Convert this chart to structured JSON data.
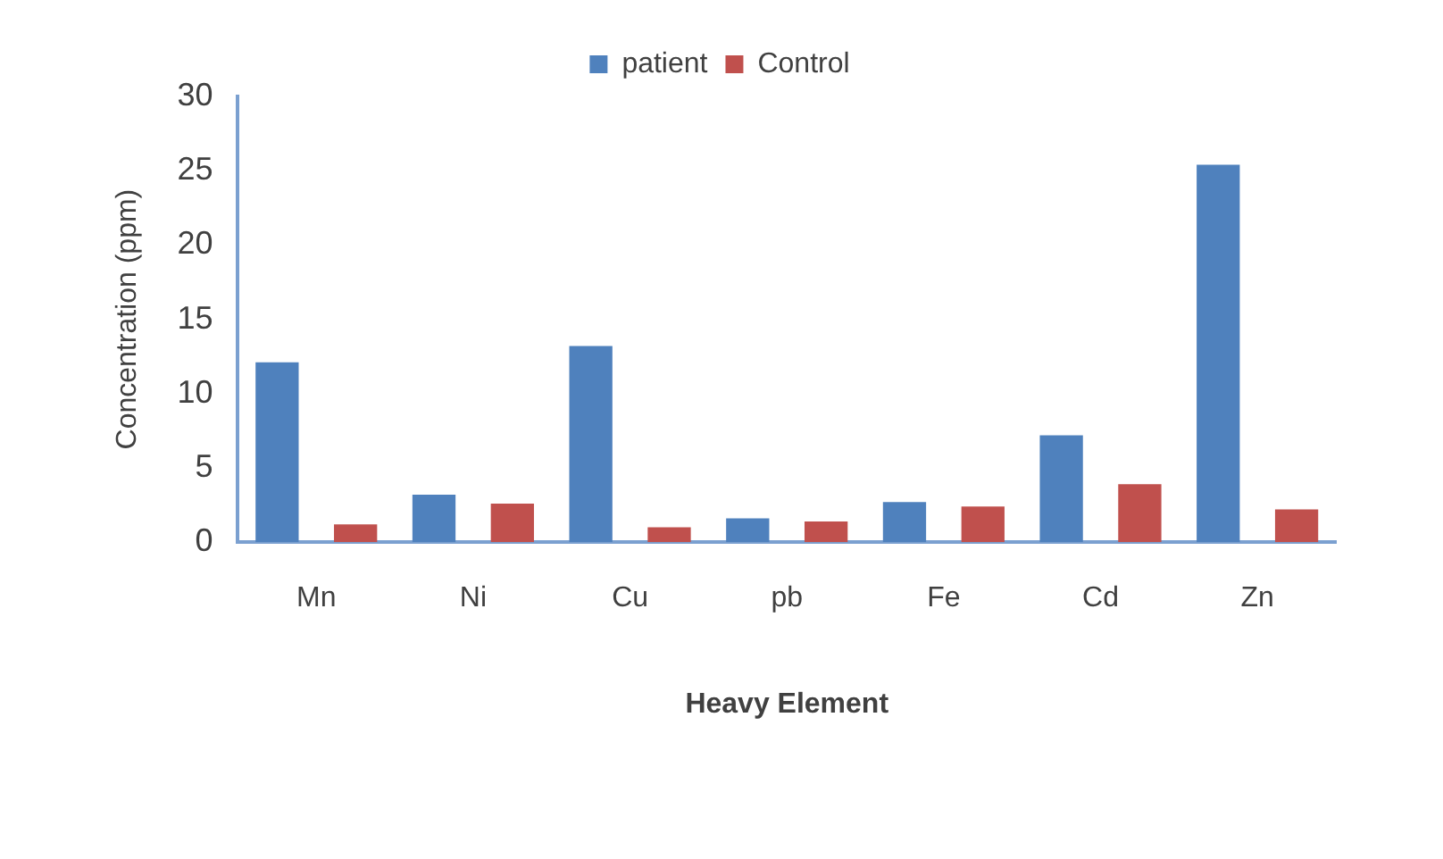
{
  "chart_data": {
    "type": "bar",
    "xlabel": "Heavy Element",
    "ylabel": "Concentration (ppm)",
    "categories": [
      "Mn",
      "Ni",
      "Cu",
      "pb",
      "Fe",
      "Cd",
      "Zn"
    ],
    "series": [
      {
        "name": "patient",
        "color": "#4f81bd",
        "values": [
          12.1,
          3.2,
          13.2,
          1.6,
          2.7,
          7.2,
          25.4
        ]
      },
      {
        "name": "Control",
        "color": "#c0504d",
        "values": [
          1.2,
          2.6,
          1.0,
          1.4,
          2.4,
          3.9,
          2.2
        ]
      }
    ],
    "ylim": [
      0,
      30
    ],
    "yticks": [
      0,
      5,
      10,
      15,
      20,
      25,
      30
    ],
    "grid": false,
    "legend": "top"
  }
}
